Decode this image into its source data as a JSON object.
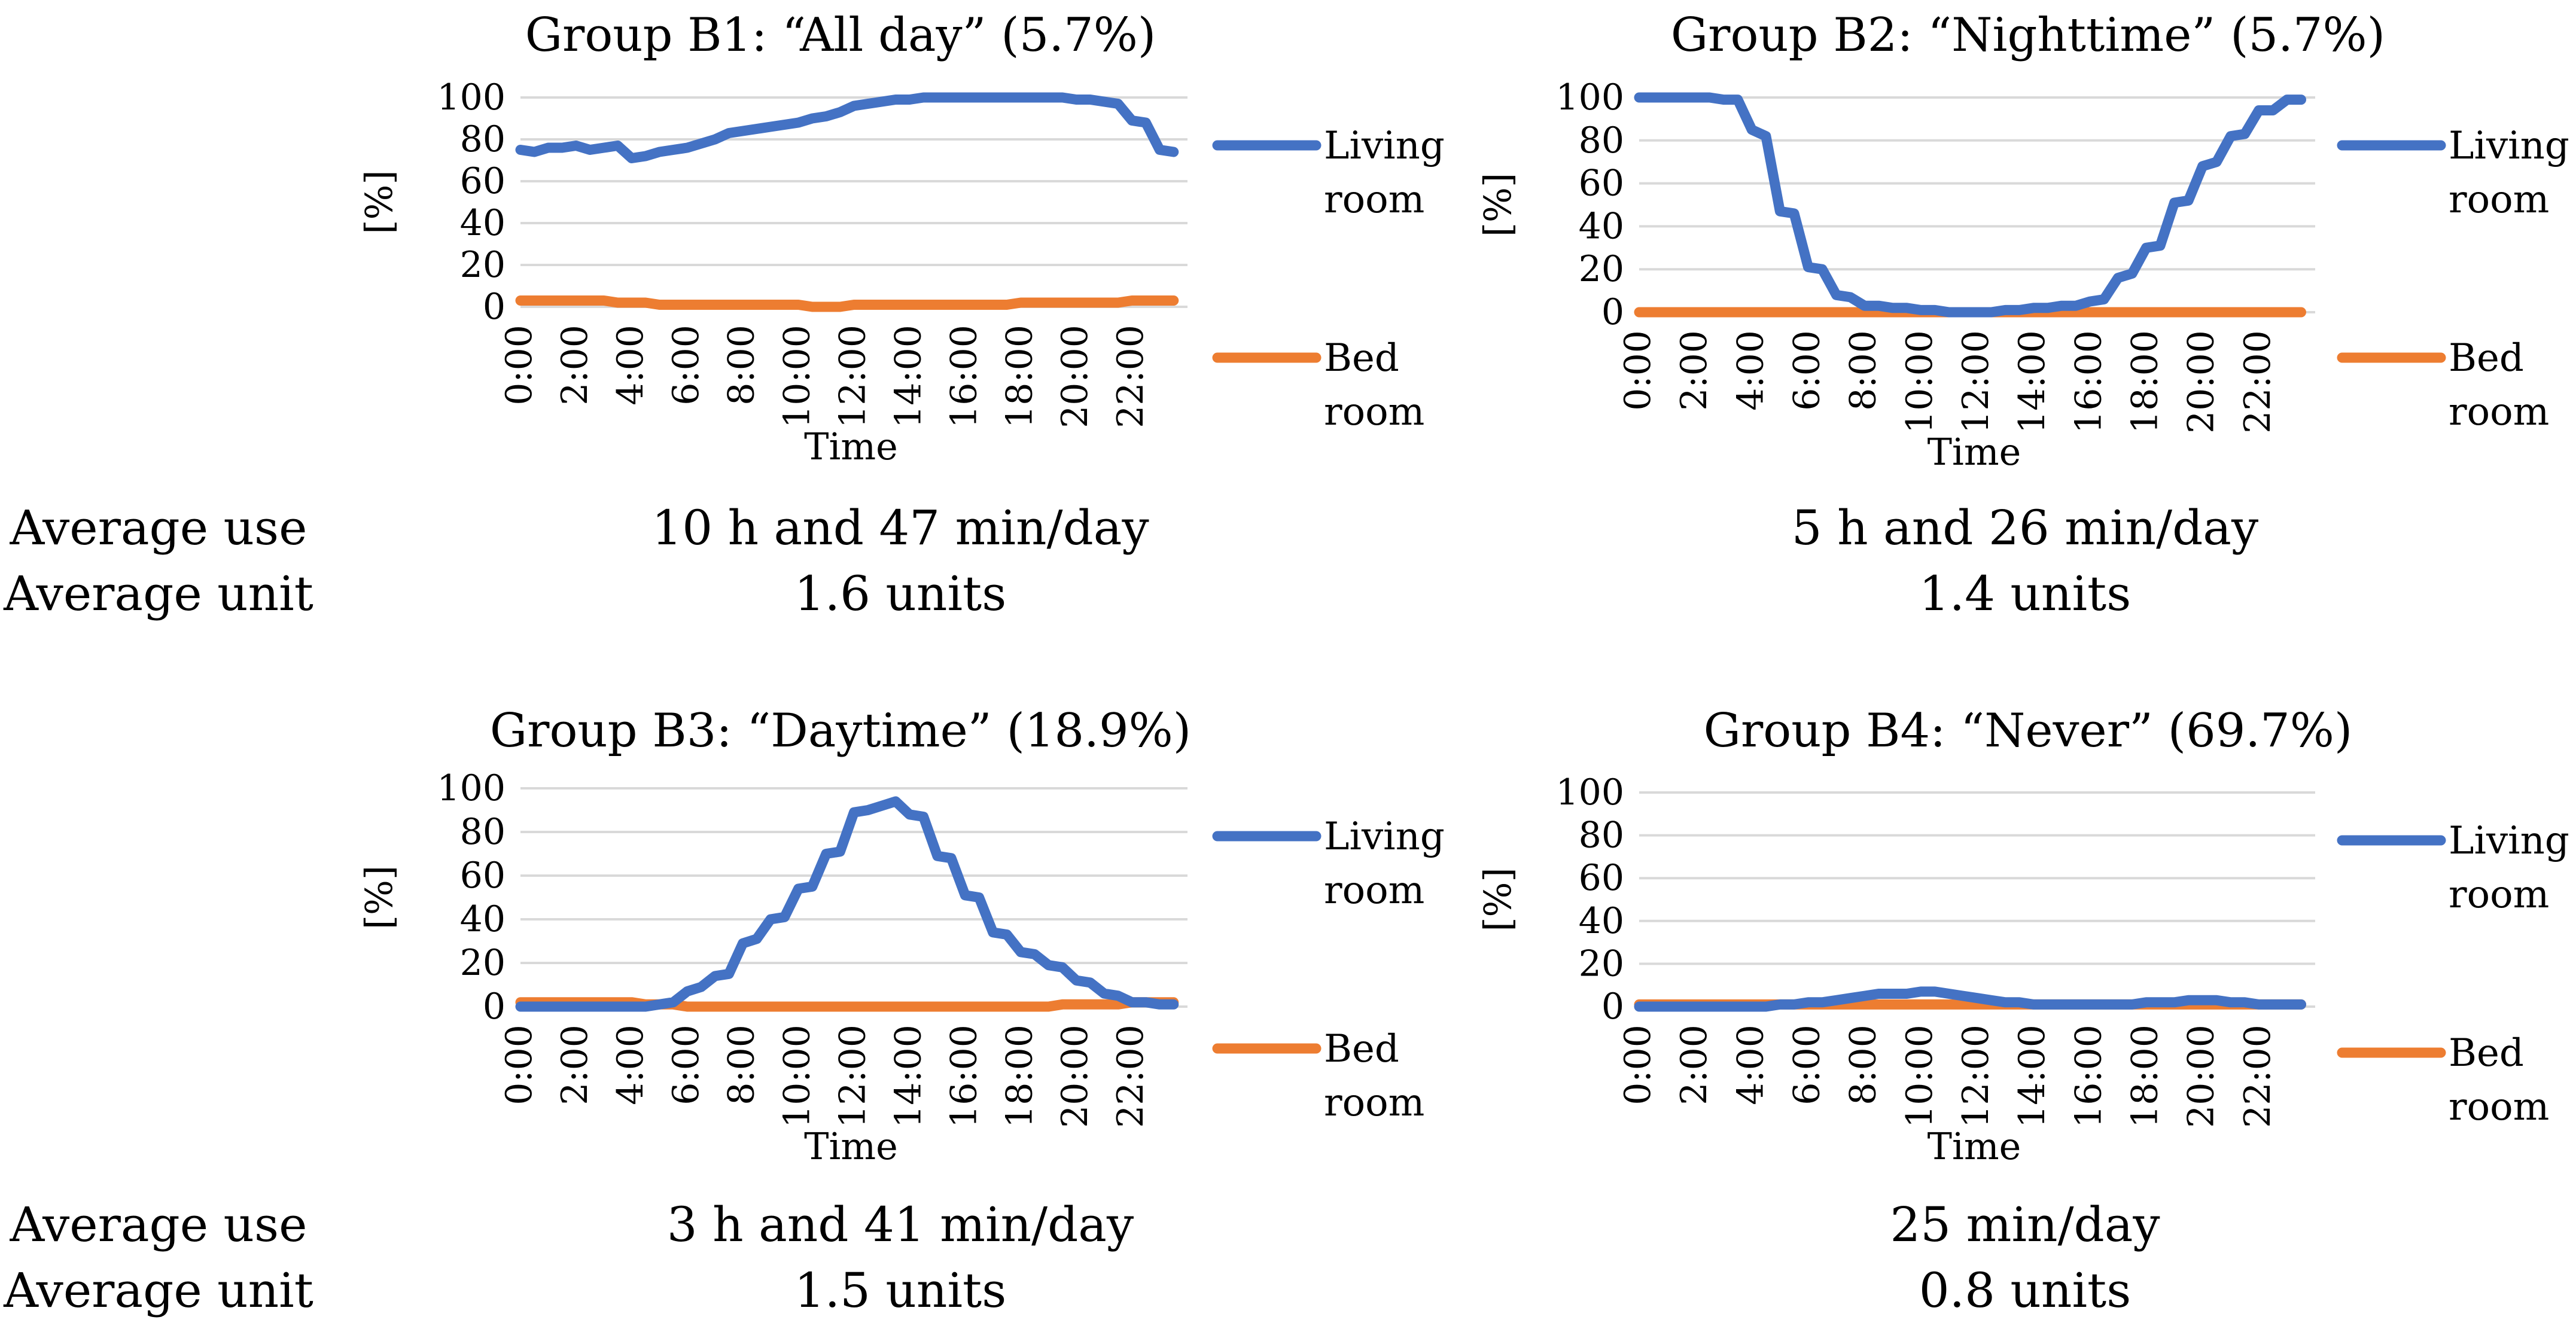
{
  "colors": {
    "living": "#4472C4",
    "bed": "#ED7D31",
    "grid": "#D9D9D9"
  },
  "row_labels": {
    "row1": {
      "use": "Average use",
      "unit": "Average unit"
    },
    "row2": {
      "use": "Average use",
      "unit": "Average unit"
    }
  },
  "chart_data": [
    {
      "type": "line",
      "title": "Group B1: “All day” (5.7%)",
      "xlabel": "Time",
      "ylabel": "[%]",
      "ylim": [
        0,
        100
      ],
      "grid": true,
      "yticks": [
        "0",
        "20",
        "40",
        "60",
        "80",
        "100"
      ],
      "xticks": [
        "0:00",
        "2:00",
        "4:00",
        "6:00",
        "8:00",
        "10:00",
        "12:00",
        "14:00",
        "16:00",
        "18:00",
        "20:00",
        "22:00"
      ],
      "legend": [
        "Living",
        "room",
        "Bed",
        "room"
      ],
      "x": [
        0,
        0.5,
        1,
        1.5,
        2,
        2.5,
        3,
        3.5,
        4,
        4.5,
        5,
        5.5,
        6,
        6.5,
        7,
        7.5,
        8,
        8.5,
        9,
        9.5,
        10,
        10.5,
        11,
        11.5,
        12,
        12.5,
        13,
        13.5,
        14,
        14.5,
        15,
        15.5,
        16,
        16.5,
        17,
        17.5,
        18,
        18.5,
        19,
        19.5,
        20,
        20.5,
        21,
        21.5,
        22,
        22.5,
        23,
        23.5
      ],
      "series": [
        {
          "name": "Living room",
          "values": [
            75,
            74,
            76,
            76,
            77,
            75,
            76,
            77,
            71,
            72,
            74,
            75,
            76,
            78,
            80,
            83,
            84,
            85,
            86,
            87,
            88,
            90,
            91,
            93,
            96,
            97,
            98,
            99,
            99,
            100,
            100,
            100,
            100,
            100,
            100,
            100,
            100,
            100,
            100,
            100,
            99,
            99,
            98,
            97,
            89,
            88,
            75,
            74
          ]
        },
        {
          "name": "Bed room",
          "values": [
            3,
            3,
            3,
            3,
            3,
            3,
            3,
            2,
            2,
            2,
            1,
            1,
            1,
            1,
            1,
            1,
            1,
            1,
            1,
            1,
            1,
            0,
            0,
            0,
            1,
            1,
            1,
            1,
            1,
            1,
            1,
            1,
            1,
            1,
            1,
            1,
            2,
            2,
            2,
            2,
            2,
            2,
            2,
            2,
            3,
            3,
            3,
            3
          ]
        }
      ],
      "stats": {
        "use": "10 h and 47 min/day",
        "unit": "1.6 units"
      }
    },
    {
      "type": "line",
      "title": "Group B2: “Nighttime” (5.7%)",
      "xlabel": "Time",
      "ylabel": "[%]",
      "ylim": [
        0,
        100
      ],
      "grid": true,
      "yticks": [
        "0",
        "20",
        "40",
        "60",
        "80",
        "100"
      ],
      "xticks": [
        "0:00",
        "2:00",
        "4:00",
        "6:00",
        "8:00",
        "10:00",
        "12:00",
        "14:00",
        "16:00",
        "18:00",
        "20:00",
        "22:00"
      ],
      "legend": [
        "Living",
        "room",
        "Bed",
        "room"
      ],
      "x": [
        0,
        0.5,
        1,
        1.5,
        2,
        2.5,
        3,
        3.5,
        4,
        4.5,
        5,
        5.5,
        6,
        6.5,
        7,
        7.5,
        8,
        8.5,
        9,
        9.5,
        10,
        10.5,
        11,
        11.5,
        12,
        12.5,
        13,
        13.5,
        14,
        14.5,
        15,
        15.5,
        16,
        16.5,
        17,
        17.5,
        18,
        18.5,
        19,
        19.5,
        20,
        20.5,
        21,
        21.5,
        22,
        22.5,
        23,
        23.5
      ],
      "series": [
        {
          "name": "Living room",
          "values": [
            100,
            100,
            100,
            100,
            100,
            100,
            99,
            99,
            85,
            82,
            47,
            46,
            21,
            20,
            8,
            7,
            3,
            3,
            2,
            2,
            1,
            1,
            0,
            0,
            0,
            0,
            1,
            1,
            2,
            2,
            3,
            3,
            5,
            6,
            16,
            18,
            30,
            31,
            51,
            52,
            68,
            70,
            82,
            83,
            94,
            94,
            99,
            99
          ]
        },
        {
          "name": "Bed room",
          "values": [
            0,
            0,
            0,
            0,
            0,
            0,
            0,
            0,
            0,
            0,
            0,
            0,
            0,
            0,
            0,
            0,
            0,
            0,
            0,
            0,
            0,
            0,
            0,
            0,
            0,
            0,
            0,
            0,
            0,
            0,
            0,
            0,
            0,
            0,
            0,
            0,
            0,
            0,
            0,
            0,
            0,
            0,
            0,
            0,
            0,
            0,
            0,
            0
          ]
        }
      ],
      "stats": {
        "use": "5 h and 26 min/day",
        "unit": "1.4 units"
      }
    },
    {
      "type": "line",
      "title": "Group B3: “Daytime” (18.9%)",
      "xlabel": "Time",
      "ylabel": "[%]",
      "ylim": [
        0,
        100
      ],
      "grid": true,
      "yticks": [
        "0",
        "20",
        "40",
        "60",
        "80",
        "100"
      ],
      "xticks": [
        "0:00",
        "2:00",
        "4:00",
        "6:00",
        "8:00",
        "10:00",
        "12:00",
        "14:00",
        "16:00",
        "18:00",
        "20:00",
        "22:00"
      ],
      "legend": [
        "Living",
        "room",
        "Bed",
        "room"
      ],
      "x": [
        0,
        0.5,
        1,
        1.5,
        2,
        2.5,
        3,
        3.5,
        4,
        4.5,
        5,
        5.5,
        6,
        6.5,
        7,
        7.5,
        8,
        8.5,
        9,
        9.5,
        10,
        10.5,
        11,
        11.5,
        12,
        12.5,
        13,
        13.5,
        14,
        14.5,
        15,
        15.5,
        16,
        16.5,
        17,
        17.5,
        18,
        18.5,
        19,
        19.5,
        20,
        20.5,
        21,
        21.5,
        22,
        22.5,
        23,
        23.5
      ],
      "series": [
        {
          "name": "Living room",
          "values": [
            0,
            0,
            0,
            0,
            0,
            0,
            0,
            0,
            0,
            0,
            1,
            2,
            7,
            9,
            14,
            15,
            29,
            31,
            40,
            41,
            54,
            55,
            70,
            71,
            89,
            90,
            92,
            94,
            88,
            87,
            69,
            68,
            51,
            50,
            34,
            33,
            25,
            24,
            19,
            18,
            12,
            11,
            6,
            5,
            2,
            2,
            1,
            1
          ]
        },
        {
          "name": "Bed room",
          "values": [
            2,
            2,
            2,
            2,
            2,
            2,
            2,
            2,
            2,
            1,
            1,
            1,
            0,
            0,
            0,
            0,
            0,
            0,
            0,
            0,
            0,
            0,
            0,
            0,
            0,
            0,
            0,
            0,
            0,
            0,
            0,
            0,
            0,
            0,
            0,
            0,
            0,
            0,
            0,
            1,
            1,
            1,
            1,
            1,
            2,
            2,
            2,
            2
          ]
        }
      ],
      "stats": {
        "use": "3 h and 41 min/day",
        "unit": "1.5 units"
      }
    },
    {
      "type": "line",
      "title": "Group B4: “Never” (69.7%)",
      "xlabel": "Time",
      "ylabel": "[%]",
      "ylim": [
        0,
        100
      ],
      "grid": true,
      "yticks": [
        "0",
        "20",
        "40",
        "60",
        "80",
        "100"
      ],
      "xticks": [
        "0:00",
        "2:00",
        "4:00",
        "6:00",
        "8:00",
        "10:00",
        "12:00",
        "14:00",
        "16:00",
        "18:00",
        "20:00",
        "22:00"
      ],
      "legend": [
        "Living",
        "room",
        "Bed",
        "room"
      ],
      "x": [
        0,
        0.5,
        1,
        1.5,
        2,
        2.5,
        3,
        3.5,
        4,
        4.5,
        5,
        5.5,
        6,
        6.5,
        7,
        7.5,
        8,
        8.5,
        9,
        9.5,
        10,
        10.5,
        11,
        11.5,
        12,
        12.5,
        13,
        13.5,
        14,
        14.5,
        15,
        15.5,
        16,
        16.5,
        17,
        17.5,
        18,
        18.5,
        19,
        19.5,
        20,
        20.5,
        21,
        21.5,
        22,
        22.5,
        23,
        23.5
      ],
      "series": [
        {
          "name": "Living room",
          "values": [
            0,
            0,
            0,
            0,
            0,
            0,
            0,
            0,
            0,
            0,
            1,
            1,
            2,
            2,
            3,
            4,
            5,
            6,
            6,
            6,
            7,
            7,
            6,
            5,
            4,
            3,
            2,
            2,
            1,
            1,
            1,
            1,
            1,
            1,
            1,
            1,
            2,
            2,
            2,
            3,
            3,
            3,
            2,
            2,
            1,
            1,
            1,
            1
          ]
        },
        {
          "name": "Bed room",
          "values": [
            1,
            1,
            1,
            1,
            1,
            1,
            1,
            1,
            1,
            1,
            1,
            1,
            1,
            1,
            1,
            1,
            1,
            1,
            1,
            1,
            1,
            1,
            1,
            1,
            1,
            1,
            1,
            1,
            1,
            1,
            1,
            1,
            1,
            1,
            1,
            1,
            1,
            1,
            1,
            1,
            1,
            1,
            1,
            1,
            1,
            1,
            1,
            1
          ]
        }
      ],
      "stats": {
        "use": "25 min/day",
        "unit": "0.8 units"
      }
    }
  ]
}
